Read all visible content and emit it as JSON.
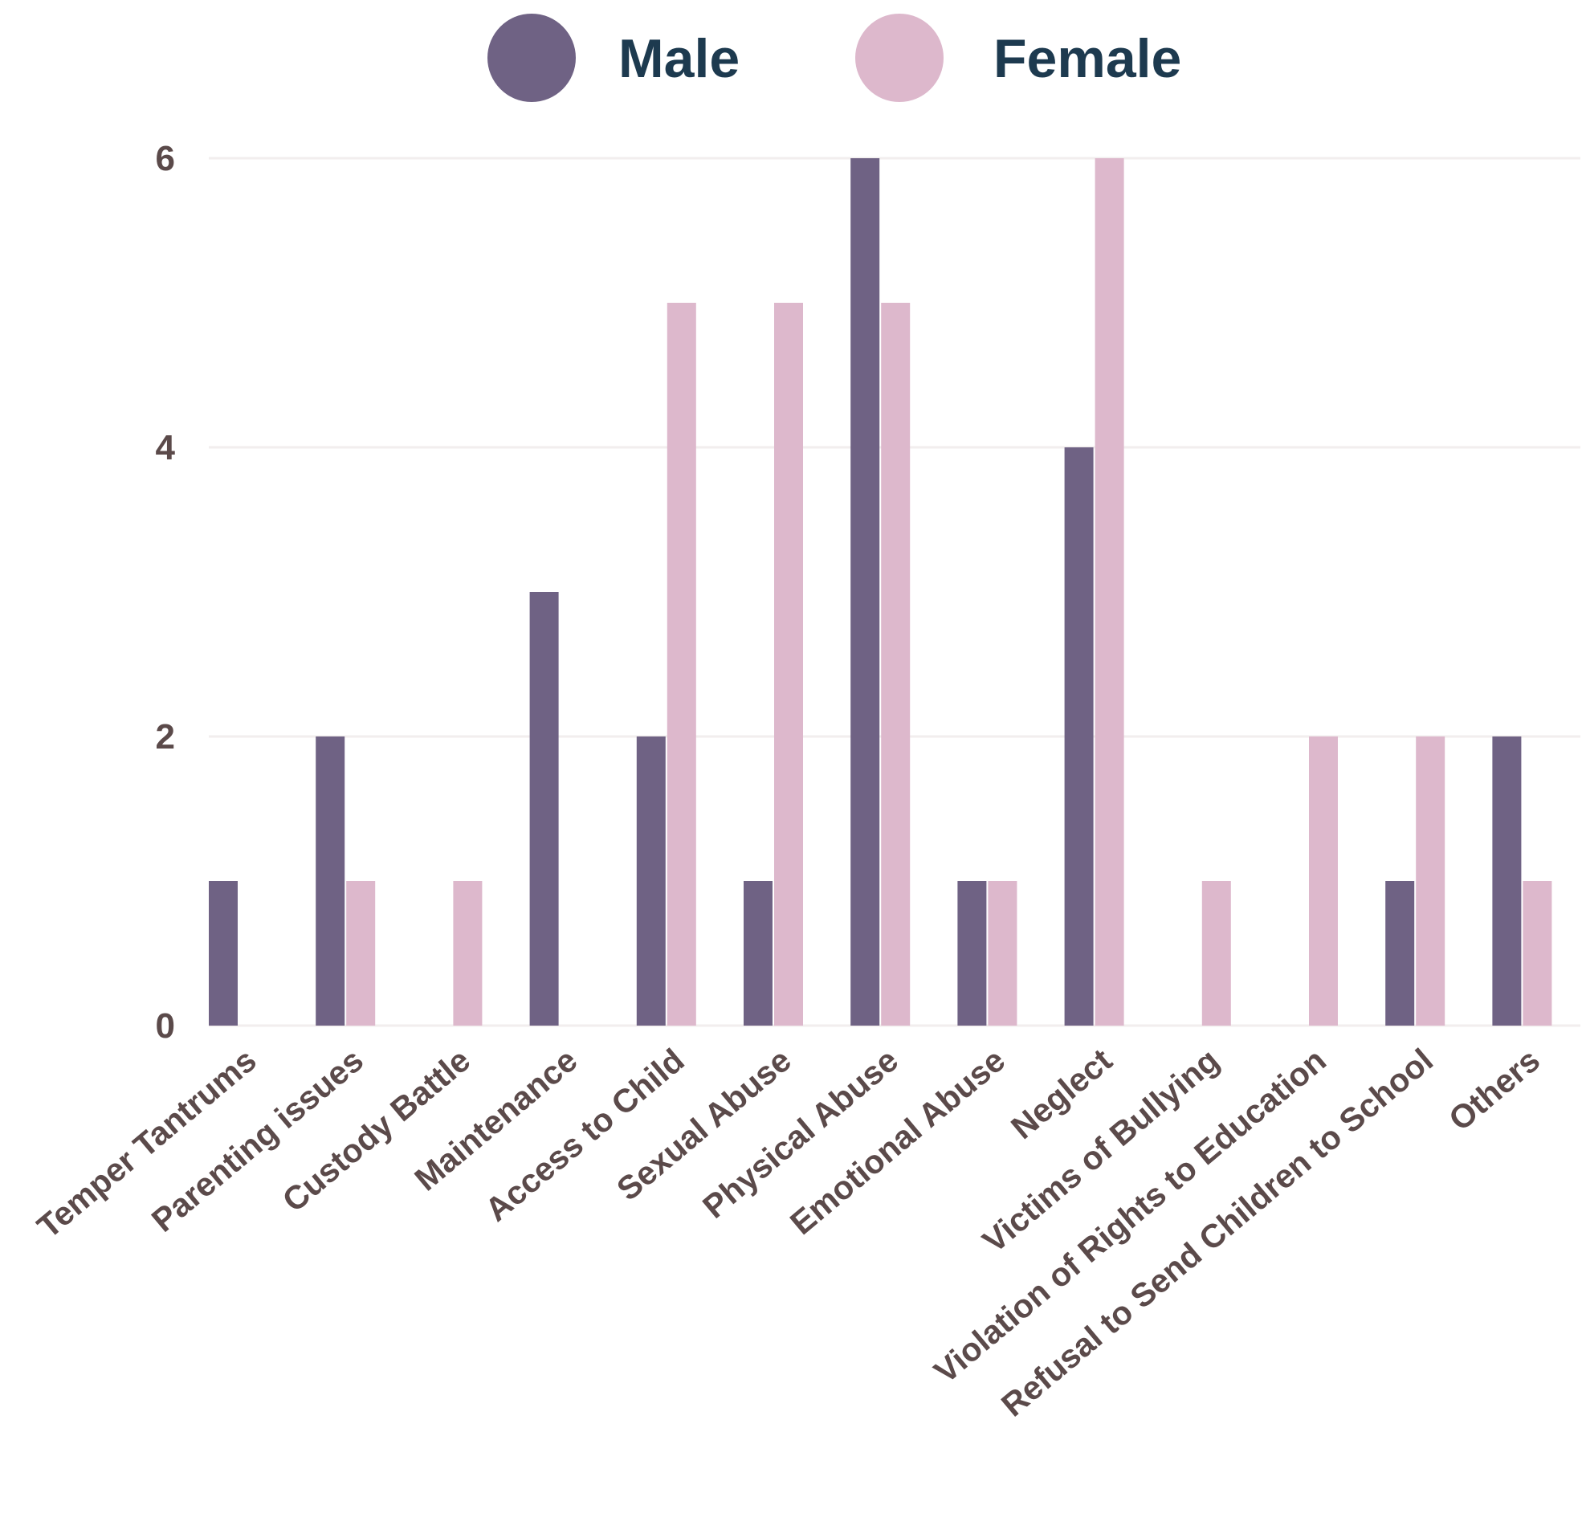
{
  "chart_data": {
    "type": "bar",
    "categories": [
      "Temper Tantrums",
      "Parenting issues",
      "Custody Battle",
      "Maintenance",
      "Access to Child",
      "Sexual Abuse",
      "Physical Abuse",
      "Emotional Abuse",
      "Neglect",
      "Victims of Bullying",
      "Violation of Rights to Education",
      "Refusal to Send Children to School",
      "Others"
    ],
    "series": [
      {
        "name": "Male",
        "color": "#6f6284",
        "values": [
          1,
          2,
          0,
          3,
          2,
          1,
          6,
          1,
          4,
          0,
          0,
          1,
          2
        ]
      },
      {
        "name": "Female",
        "color": "#ddb8cc",
        "values": [
          0,
          1,
          1,
          0,
          5,
          5,
          5,
          1,
          6,
          1,
          2,
          2,
          1
        ]
      }
    ],
    "yticks": [
      "0",
      "2",
      "4",
      "6"
    ],
    "ylim": [
      0,
      6
    ],
    "xlabel": "",
    "ylabel": "",
    "legend_position": "top",
    "grid": true
  }
}
